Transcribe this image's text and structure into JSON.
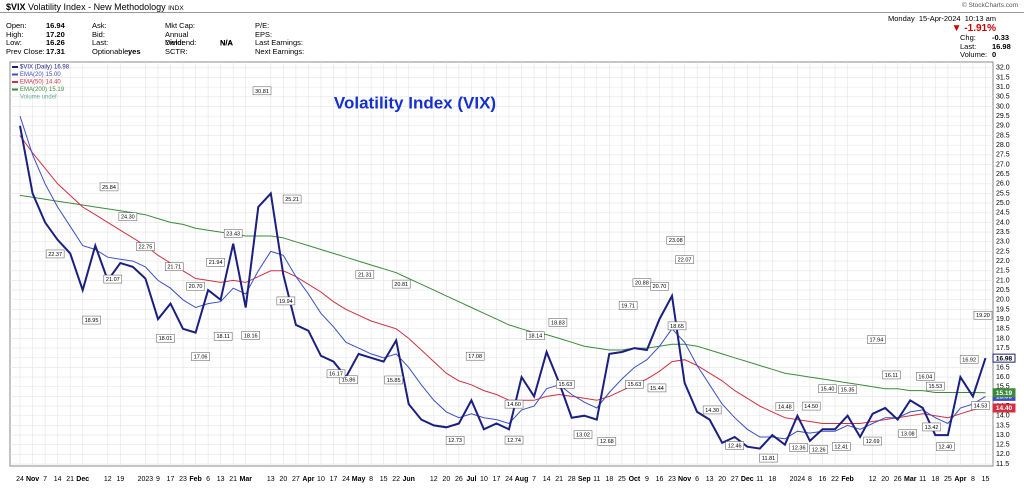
{
  "header": {
    "symbol": "$VIX",
    "name": "Volatility Index - New Methodology",
    "exchange": "INDX",
    "copyright": "© StockCharts.com",
    "date": "Monday  15-Apr-2024  10:13 am",
    "change_pct": "▼ -1.91%",
    "col1": [
      {
        "label": "Open:",
        "value": "16.94"
      },
      {
        "label": "High:",
        "value": "17.20"
      },
      {
        "label": "Low:",
        "value": "16.26"
      },
      {
        "label": "Prev Close:",
        "value": "17.31"
      }
    ],
    "col2": [
      {
        "label": "Ask:"
      },
      {
        "label": "Bid:"
      },
      {
        "label": "Last:"
      },
      {
        "label": "Optionable:",
        "value": "yes"
      }
    ],
    "col3": [
      {
        "label": "Mkt Cap:"
      },
      {
        "label": "Annual Dividend:",
        "value": "N/A"
      },
      {
        "label": "Yield:",
        "value": "N/A"
      },
      {
        "label": "SCTR:"
      }
    ],
    "col4": [
      {
        "label": "P/E:"
      },
      {
        "label": "EPS:"
      },
      {
        "label": "Last Earnings:"
      },
      {
        "label": "Next Earnings:"
      }
    ],
    "col5": [
      {
        "label": "Chg:",
        "value": "-0.33"
      },
      {
        "label": "Last:",
        "value": "16.98"
      },
      {
        "label": "Volume:",
        "value": "0"
      }
    ]
  },
  "chart_data": {
    "type": "line",
    "title": "Volatility Index (VIX)",
    "volume_note": "Volume undef",
    "grid": true,
    "x": [
      0,
      1,
      2,
      3,
      4,
      5,
      6,
      7,
      8,
      9,
      10,
      11,
      12,
      13,
      14,
      15,
      16,
      17,
      18,
      19,
      20,
      21,
      22,
      23,
      24,
      25,
      26,
      27,
      28,
      29,
      30,
      31,
      32,
      33,
      34,
      35,
      36,
      37,
      38,
      39,
      40,
      41,
      42,
      43,
      44,
      45,
      46,
      47,
      48,
      49,
      50,
      51,
      52,
      53,
      54,
      55,
      56,
      57,
      58,
      59,
      60,
      61,
      62,
      63,
      64,
      65,
      66,
      67,
      68,
      69,
      70,
      71,
      72,
      73,
      74,
      75,
      76,
      77
    ],
    "series": [
      {
        "name": "$VIX (Daily)",
        "last_label": "16.98",
        "color": "#1a1f80",
        "values": [
          29.0,
          25.5,
          24.0,
          23.1,
          22.4,
          20.5,
          22.8,
          21.0,
          21.9,
          21.7,
          21.1,
          19.0,
          19.8,
          18.5,
          18.3,
          20.5,
          20.0,
          22.9,
          19.6,
          24.8,
          25.5,
          21.3,
          18.7,
          18.4,
          17.1,
          16.8,
          16.0,
          17.2,
          17.0,
          16.8,
          17.9,
          14.6,
          13.8,
          13.5,
          13.4,
          13.6,
          14.8,
          13.3,
          13.6,
          13.3,
          16.0,
          15.0,
          17.3,
          15.7,
          13.9,
          14.0,
          13.8,
          17.2,
          17.3,
          17.5,
          17.4,
          19.0,
          20.2,
          15.7,
          14.2,
          13.8,
          12.6,
          12.9,
          12.4,
          12.3,
          13.0,
          12.5,
          14.0,
          12.7,
          13.3,
          13.3,
          14.0,
          12.9,
          14.1,
          14.4,
          13.8,
          14.8,
          14.4,
          13.0,
          13.0,
          16.0,
          15.0,
          16.98
        ]
      },
      {
        "name": "EMA(20)",
        "last_label": "15.00",
        "color": "#3c4fc4",
        "values": [
          29.5,
          27.5,
          26.0,
          24.8,
          23.8,
          22.8,
          22.6,
          22.2,
          22.1,
          22.0,
          21.7,
          21.0,
          20.6,
          20.0,
          19.6,
          19.8,
          19.9,
          20.6,
          20.3,
          21.5,
          22.5,
          22.3,
          21.2,
          20.3,
          19.3,
          18.6,
          17.8,
          17.5,
          17.2,
          17.0,
          17.2,
          16.5,
          15.6,
          14.8,
          14.2,
          13.9,
          14.1,
          13.9,
          13.8,
          13.6,
          14.3,
          14.5,
          15.4,
          15.6,
          15.1,
          14.7,
          14.4,
          15.2,
          15.9,
          16.5,
          16.9,
          17.6,
          18.5,
          17.8,
          16.6,
          15.6,
          14.6,
          13.9,
          13.3,
          12.9,
          12.9,
          12.8,
          13.2,
          13.1,
          13.2,
          13.2,
          13.5,
          13.3,
          13.6,
          13.9,
          13.9,
          14.2,
          14.3,
          13.9,
          13.6,
          14.4,
          14.6,
          15.0
        ]
      },
      {
        "name": "EMA(50)",
        "last_label": "14.40",
        "color": "#d03040",
        "values": [
          28.5,
          27.6,
          26.8,
          26.0,
          25.4,
          24.8,
          24.4,
          24.0,
          23.6,
          23.2,
          22.8,
          22.3,
          21.9,
          21.5,
          21.1,
          21.0,
          20.9,
          21.0,
          20.9,
          21.2,
          21.5,
          21.5,
          21.2,
          20.8,
          20.4,
          19.9,
          19.5,
          19.2,
          18.9,
          18.7,
          18.5,
          18.0,
          17.4,
          16.8,
          16.2,
          15.8,
          15.6,
          15.3,
          15.1,
          14.8,
          14.8,
          14.8,
          15.0,
          15.1,
          15.0,
          14.9,
          14.8,
          15.0,
          15.3,
          15.6,
          15.9,
          16.3,
          16.8,
          16.9,
          16.6,
          16.2,
          15.8,
          15.3,
          14.9,
          14.5,
          14.2,
          13.9,
          13.8,
          13.7,
          13.6,
          13.6,
          13.6,
          13.6,
          13.7,
          13.8,
          13.9,
          14.0,
          14.1,
          14.0,
          13.9,
          14.1,
          14.3,
          14.4
        ]
      },
      {
        "name": "EMA(200)",
        "last_label": "15.19",
        "color": "#3d8a3d",
        "values": [
          25.4,
          25.3,
          25.2,
          25.1,
          25.0,
          24.9,
          24.8,
          24.7,
          24.6,
          24.5,
          24.4,
          24.2,
          24.0,
          23.9,
          23.7,
          23.6,
          23.5,
          23.4,
          23.3,
          23.3,
          23.3,
          23.2,
          23.0,
          22.8,
          22.6,
          22.4,
          22.2,
          22.0,
          21.8,
          21.6,
          21.4,
          21.1,
          20.8,
          20.5,
          20.2,
          19.9,
          19.6,
          19.3,
          19.0,
          18.7,
          18.5,
          18.3,
          18.2,
          18.0,
          17.8,
          17.6,
          17.5,
          17.4,
          17.4,
          17.5,
          17.5,
          17.6,
          17.7,
          17.7,
          17.6,
          17.4,
          17.2,
          17.0,
          16.8,
          16.6,
          16.4,
          16.2,
          16.1,
          16.0,
          15.9,
          15.8,
          15.7,
          15.6,
          15.5,
          15.4,
          15.4,
          15.3,
          15.3,
          15.2,
          15.2,
          15.2,
          15.2,
          15.19
        ]
      }
    ],
    "annotations": [
      {
        "x": 7.1,
        "value": 25.84,
        "label": "25.84"
      },
      {
        "x": 2.8,
        "value": 22.37,
        "label": "22.37"
      },
      {
        "x": 8.6,
        "value": 24.3,
        "label": "24.30"
      },
      {
        "x": 10,
        "value": 22.75,
        "label": "22.75"
      },
      {
        "x": 7.4,
        "value": 21.07,
        "label": "21.07"
      },
      {
        "x": 5.7,
        "value": 18.95,
        "label": "18.95"
      },
      {
        "x": 12.3,
        "value": 21.71,
        "label": "21.71"
      },
      {
        "x": 14,
        "value": 20.7,
        "label": "20.70"
      },
      {
        "x": 11.6,
        "value": 18.01,
        "label": "18.01"
      },
      {
        "x": 14.4,
        "value": 17.06,
        "label": "17.06"
      },
      {
        "x": 15.6,
        "value": 21.94,
        "label": "21.94"
      },
      {
        "x": 16.2,
        "value": 18.11,
        "label": "18.11"
      },
      {
        "x": 17,
        "value": 23.43,
        "label": "23.43"
      },
      {
        "x": 18.4,
        "value": 18.16,
        "label": "18.16"
      },
      {
        "x": 19.3,
        "value": 30.81,
        "label": "30.81"
      },
      {
        "x": 21.7,
        "value": 25.21,
        "label": "25.21"
      },
      {
        "x": 21.2,
        "value": 19.94,
        "label": "19.94"
      },
      {
        "x": 27.5,
        "value": 21.31,
        "label": "21.31"
      },
      {
        "x": 30.4,
        "value": 20.81,
        "label": "20.81"
      },
      {
        "x": 26.2,
        "value": 15.86,
        "label": "15.86"
      },
      {
        "x": 25.2,
        "value": 16.17,
        "label": "16.17"
      },
      {
        "x": 29.8,
        "value": 15.85,
        "label": "15.85"
      },
      {
        "x": 36.3,
        "value": 17.08,
        "label": "17.08"
      },
      {
        "x": 34.7,
        "value": 12.73,
        "label": "12.73"
      },
      {
        "x": 39.4,
        "value": 12.74,
        "label": "12.74"
      },
      {
        "x": 39.4,
        "value": 14.6,
        "label": "14.60"
      },
      {
        "x": 41.1,
        "value": 18.14,
        "label": "18.14"
      },
      {
        "x": 42.9,
        "value": 18.83,
        "label": "18.83"
      },
      {
        "x": 43.5,
        "value": 15.63,
        "label": "15.63"
      },
      {
        "x": 44.9,
        "value": 13.02,
        "label": "13.02"
      },
      {
        "x": 46.8,
        "value": 12.68,
        "label": "12.68"
      },
      {
        "x": 48.5,
        "value": 19.71,
        "label": "19.71"
      },
      {
        "x": 49,
        "value": 15.63,
        "label": "15.63"
      },
      {
        "x": 49.6,
        "value": 20.88,
        "label": "20.88"
      },
      {
        "x": 51,
        "value": 20.7,
        "label": "20.70"
      },
      {
        "x": 50.8,
        "value": 15.44,
        "label": "15.44"
      },
      {
        "x": 52.3,
        "value": 23.08,
        "label": "23.08"
      },
      {
        "x": 53,
        "value": 22.07,
        "label": "22.07"
      },
      {
        "x": 52.4,
        "value": 18.65,
        "label": "18.65"
      },
      {
        "x": 55.2,
        "value": 14.3,
        "label": "14.30"
      },
      {
        "x": 57,
        "value": 12.46,
        "label": "12.46"
      },
      {
        "x": 59.7,
        "value": 11.81,
        "label": "11.81"
      },
      {
        "x": 61,
        "value": 14.48,
        "label": "14.48"
      },
      {
        "x": 62.1,
        "value": 12.36,
        "label": "12.36"
      },
      {
        "x": 63.1,
        "value": 14.5,
        "label": "14.50"
      },
      {
        "x": 63.7,
        "value": 12.26,
        "label": "12.26"
      },
      {
        "x": 64.4,
        "value": 15.4,
        "label": "15.40"
      },
      {
        "x": 65.5,
        "value": 12.41,
        "label": "12.41"
      },
      {
        "x": 66,
        "value": 15.35,
        "label": "15.35"
      },
      {
        "x": 68,
        "value": 12.69,
        "label": "12.69"
      },
      {
        "x": 68.3,
        "value": 17.94,
        "label": "17.94"
      },
      {
        "x": 69.5,
        "value": 16.11,
        "label": "16.11"
      },
      {
        "x": 70.8,
        "value": 13.08,
        "label": "13.08"
      },
      {
        "x": 72.2,
        "value": 16.04,
        "label": "16.04"
      },
      {
        "x": 73,
        "value": 15.53,
        "label": "15.53"
      },
      {
        "x": 72.7,
        "value": 13.42,
        "label": "13.42"
      },
      {
        "x": 73.8,
        "value": 12.4,
        "label": "12.40"
      },
      {
        "x": 75.7,
        "value": 16.92,
        "label": "16.92"
      },
      {
        "x": 76.8,
        "value": 19.2,
        "label": "19.20"
      },
      {
        "x": 76.6,
        "value": 14.53,
        "label": "14.53"
      }
    ],
    "xlim": [
      -0.8,
      77.6
    ],
    "xticks": [
      {
        "value": 0,
        "label": "24"
      },
      {
        "value": 1,
        "label": "Nov"
      },
      {
        "value": 2,
        "label": "7"
      },
      {
        "value": 3,
        "label": "14"
      },
      {
        "value": 4,
        "label": "21"
      },
      {
        "value": 5,
        "label": "Dec"
      },
      {
        "value": 7,
        "label": "12"
      },
      {
        "value": 8,
        "label": "19"
      },
      {
        "value": 10,
        "label": "2023"
      },
      {
        "value": 11,
        "label": "9"
      },
      {
        "value": 12,
        "label": "17"
      },
      {
        "value": 13,
        "label": "23"
      },
      {
        "value": 14,
        "label": "Feb"
      },
      {
        "value": 15,
        "label": "6"
      },
      {
        "value": 16,
        "label": "13"
      },
      {
        "value": 17,
        "label": "21"
      },
      {
        "value": 18,
        "label": "Mar"
      },
      {
        "value": 20,
        "label": "13"
      },
      {
        "value": 21,
        "label": "20"
      },
      {
        "value": 22,
        "label": "27"
      },
      {
        "value": 23,
        "label": "Apr"
      },
      {
        "value": 24,
        "label": "10"
      },
      {
        "value": 25,
        "label": "17"
      },
      {
        "value": 26,
        "label": "24"
      },
      {
        "value": 27,
        "label": "May"
      },
      {
        "value": 28,
        "label": "8"
      },
      {
        "value": 29,
        "label": "15"
      },
      {
        "value": 30,
        "label": "22"
      },
      {
        "value": 31,
        "label": "Jun"
      },
      {
        "value": 33,
        "label": "12"
      },
      {
        "value": 34,
        "label": "20"
      },
      {
        "value": 35,
        "label": "26"
      },
      {
        "value": 36,
        "label": "Jul"
      },
      {
        "value": 37,
        "label": "10"
      },
      {
        "value": 38,
        "label": "17"
      },
      {
        "value": 39,
        "label": "24"
      },
      {
        "value": 40,
        "label": "Aug"
      },
      {
        "value": 41,
        "label": "7"
      },
      {
        "value": 42,
        "label": "14"
      },
      {
        "value": 43,
        "label": "21"
      },
      {
        "value": 44,
        "label": "28"
      },
      {
        "value": 45,
        "label": "Sep"
      },
      {
        "value": 46,
        "label": "11"
      },
      {
        "value": 47,
        "label": "18"
      },
      {
        "value": 48,
        "label": "25"
      },
      {
        "value": 49,
        "label": "Oct"
      },
      {
        "value": 50,
        "label": "9"
      },
      {
        "value": 51,
        "label": "16"
      },
      {
        "value": 52,
        "label": "23"
      },
      {
        "value": 53,
        "label": "Nov"
      },
      {
        "value": 54,
        "label": "6"
      },
      {
        "value": 55,
        "label": "13"
      },
      {
        "value": 56,
        "label": "20"
      },
      {
        "value": 57,
        "label": "27"
      },
      {
        "value": 58,
        "label": "Dec"
      },
      {
        "value": 59,
        "label": "11"
      },
      {
        "value": 60,
        "label": "18"
      },
      {
        "value": 62,
        "label": "2024"
      },
      {
        "value": 63,
        "label": "8"
      },
      {
        "value": 64,
        "label": "16"
      },
      {
        "value": 65,
        "label": "22"
      },
      {
        "value": 66,
        "label": "Feb"
      },
      {
        "value": 68,
        "label": "12"
      },
      {
        "value": 69,
        "label": "20"
      },
      {
        "value": 70,
        "label": "26"
      },
      {
        "value": 71,
        "label": "Mar"
      },
      {
        "value": 72,
        "label": "11"
      },
      {
        "value": 73,
        "label": "18"
      },
      {
        "value": 74,
        "label": "25"
      },
      {
        "value": 75,
        "label": "Apr"
      },
      {
        "value": 76,
        "label": "8"
      },
      {
        "value": 77,
        "label": "15"
      }
    ],
    "ylim": [
      11.4,
      32.3
    ],
    "yticks": [
      {
        "value": 32,
        "label": "32.0"
      },
      31.5,
      {
        "value": 31,
        "label": "31.0"
      },
      30.5,
      {
        "value": 30,
        "label": "30.0"
      },
      29.5,
      {
        "value": 29,
        "label": "29.0"
      },
      28.5,
      {
        "value": 28,
        "label": "28.0"
      },
      27.5,
      {
        "value": 27,
        "label": "27.0"
      },
      26.5,
      {
        "value": 26,
        "label": "26.0"
      },
      25.5,
      {
        "value": 25,
        "label": "25.0"
      },
      24.5,
      {
        "value": 24,
        "label": "24.0"
      },
      23.5,
      {
        "value": 23,
        "label": "23.0"
      },
      22.5,
      {
        "value": 22,
        "label": "22.0"
      },
      21.5,
      {
        "value": 21,
        "label": "21.0"
      },
      20.5,
      {
        "value": 20,
        "label": "20.0"
      },
      19.5,
      {
        "value": 19,
        "label": "19.0"
      },
      18.5,
      {
        "value": 18,
        "label": "18.0"
      },
      17.5,
      {
        "value": 17,
        "label": "17.0"
      },
      16.5,
      {
        "value": 16,
        "label": "16.0"
      },
      15.5,
      {
        "value": 15,
        "label": "15.0"
      },
      14.5,
      {
        "value": 14,
        "label": "14.0"
      },
      13.5,
      {
        "value": 13,
        "label": "13.0"
      },
      12.5,
      {
        "value": 12,
        "label": "12.0"
      },
      11.5
    ]
  }
}
